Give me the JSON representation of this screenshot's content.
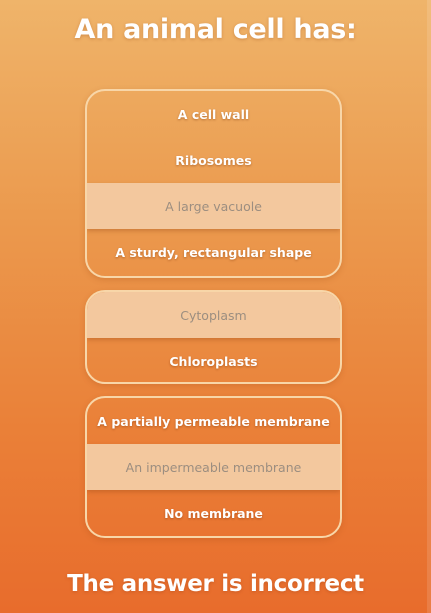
{
  "question": {
    "title": "An animal cell has:"
  },
  "groups": [
    {
      "options": [
        {
          "label": "A cell wall",
          "selected": false
        },
        {
          "label": "Ribosomes",
          "selected": false
        },
        {
          "label": "A large vacuole",
          "selected": true
        },
        {
          "label": "A sturdy, rectangular shape",
          "selected": false
        }
      ]
    },
    {
      "options": [
        {
          "label": "Cytoplasm",
          "selected": true
        },
        {
          "label": "Chloroplasts",
          "selected": false
        }
      ]
    },
    {
      "options": [
        {
          "label": "A partially permeable membrane",
          "selected": false
        },
        {
          "label": "An impermeable membrane",
          "selected": true
        },
        {
          "label": "No membrane",
          "selected": false
        }
      ]
    }
  ],
  "result": {
    "message": "The answer is incorrect"
  },
  "colors": {
    "background_top": "#efb46a",
    "background_bottom": "#e86c2c",
    "selected_option": "#f3c89e",
    "border": "#f8d6a8"
  }
}
